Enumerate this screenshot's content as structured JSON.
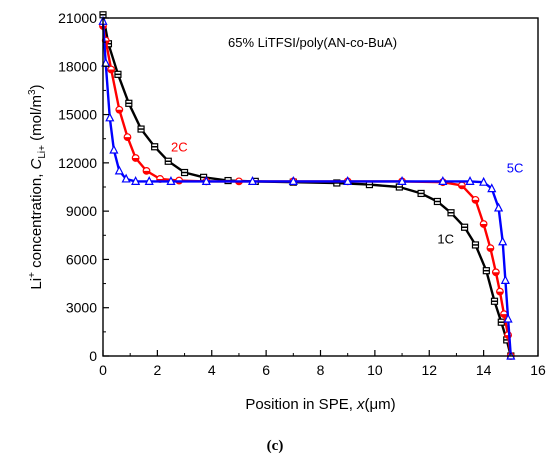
{
  "chart_data": {
    "type": "line",
    "annotation": "65% LiTFSI/poly(AN-co-BuA)",
    "xlabel": "Position in SPE, x(μm)",
    "ylabel": "Li+ concentration, CLi+ (mol/m3)",
    "xlim": [
      0,
      16
    ],
    "ylim": [
      0,
      21000
    ],
    "xticks": [
      0,
      2,
      4,
      6,
      8,
      10,
      12,
      14,
      16
    ],
    "yticks": [
      0,
      3000,
      6000,
      9000,
      12000,
      15000,
      18000,
      21000
    ],
    "grid": false,
    "legend": "none",
    "series": [
      {
        "name": "1C",
        "color": "#000000",
        "marker": "square",
        "x": [
          0,
          0.2,
          0.55,
          0.95,
          1.4,
          1.9,
          2.4,
          3.0,
          3.7,
          4.6,
          5.6,
          7.0,
          8.6,
          9.8,
          10.9,
          11.7,
          12.3,
          12.8,
          13.3,
          13.7,
          14.1,
          14.4,
          14.65,
          14.85,
          15.0
        ],
        "y": [
          21200,
          19400,
          17500,
          15700,
          14100,
          13000,
          12100,
          11400,
          11100,
          10900,
          10850,
          10800,
          10750,
          10650,
          10500,
          10100,
          9600,
          8900,
          8000,
          6900,
          5300,
          3400,
          2100,
          1000,
          0
        ],
        "labels": [
          {
            "text": "1C",
            "x": 12.3,
            "y": 7000,
            "color": "#000000"
          }
        ]
      },
      {
        "name": "2C",
        "color": "#ff0000",
        "marker": "circle",
        "x": [
          0,
          0.1,
          0.3,
          0.6,
          0.9,
          1.2,
          1.6,
          2.1,
          2.8,
          3.8,
          5.0,
          7.0,
          9.0,
          11.0,
          12.5,
          13.2,
          13.7,
          14.0,
          14.25,
          14.45,
          14.6,
          14.75,
          14.9,
          15.0
        ],
        "y": [
          20500,
          19600,
          17800,
          15300,
          13600,
          12300,
          11500,
          11000,
          10900,
          10850,
          10850,
          10850,
          10850,
          10850,
          10800,
          10600,
          9700,
          8200,
          6700,
          5200,
          4000,
          2600,
          1300,
          0
        ],
        "labels": [
          {
            "text": "2C",
            "x": 2.5,
            "y": 12700,
            "color": "#ff0000"
          }
        ]
      },
      {
        "name": "5C",
        "color": "#0000ff",
        "marker": "triangle",
        "x": [
          0,
          0.1,
          0.25,
          0.4,
          0.6,
          0.85,
          1.2,
          1.7,
          2.5,
          3.8,
          5.5,
          7.0,
          9.0,
          11.0,
          12.5,
          13.5,
          14.0,
          14.3,
          14.55,
          14.7,
          14.8,
          14.9,
          15.0
        ],
        "y": [
          20800,
          18200,
          14800,
          12800,
          11500,
          11000,
          10850,
          10850,
          10850,
          10850,
          10850,
          10850,
          10850,
          10850,
          10850,
          10850,
          10800,
          10400,
          9200,
          7100,
          4700,
          2300,
          0
        ],
        "labels": [
          {
            "text": "5C",
            "x": 14.85,
            "y": 11400,
            "color": "#0000ff"
          }
        ]
      }
    ]
  },
  "caption": "(c)"
}
